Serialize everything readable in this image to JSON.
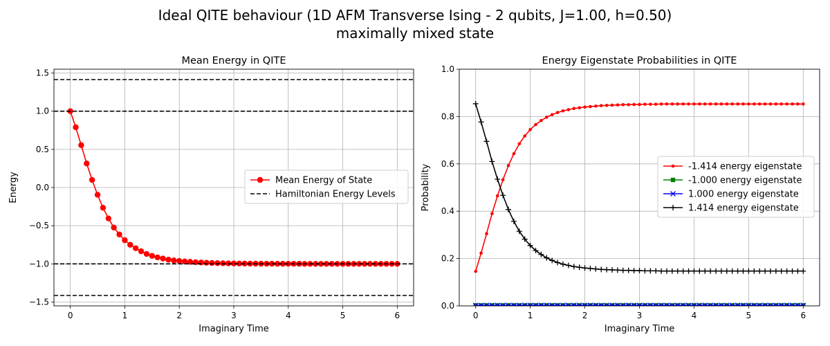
{
  "figure": {
    "title_line1": "Ideal QITE behaviour (1D AFM Transverse Ising - 2 qubits,  J=1.00, h=0.50)",
    "title_line2": "maximally mixed state"
  },
  "chart_data": [
    {
      "type": "line",
      "title": "Mean Energy in QITE",
      "xlabel": "Imaginary Time",
      "ylabel": "Energy",
      "xlim": [
        -0.3,
        6.3
      ],
      "ylim": [
        -1.55,
        1.55
      ],
      "xticks": [
        0,
        1,
        2,
        3,
        4,
        5,
        6
      ],
      "yticks": [
        -1.5,
        -1.0,
        -0.5,
        0.0,
        0.5,
        1.0,
        1.5
      ],
      "grid": true,
      "legend_position": "center-right",
      "series": [
        {
          "name": "Mean Energy of State",
          "color": "#ff0000",
          "marker": "circle",
          "x": [
            0.0,
            0.1,
            0.2,
            0.3,
            0.4,
            0.5,
            0.6,
            0.7,
            0.8,
            0.9,
            1.0,
            1.1,
            1.2,
            1.3,
            1.4,
            1.5,
            1.6,
            1.7,
            1.8,
            1.9,
            2.0,
            2.1,
            2.2,
            2.3,
            2.4,
            2.5,
            2.6,
            2.7,
            2.8,
            2.9,
            3.0,
            3.1,
            3.2,
            3.3,
            3.4,
            3.5,
            3.6,
            3.7,
            3.8,
            3.9,
            4.0,
            4.1,
            4.2,
            4.3,
            4.4,
            4.5,
            4.6,
            4.7,
            4.8,
            4.9,
            5.0,
            5.1,
            5.2,
            5.3,
            5.4,
            5.5,
            5.6,
            5.7,
            5.8,
            5.9,
            6.0
          ],
          "y": [
            1.0,
            0.79,
            0.555,
            0.315,
            0.1,
            -0.095,
            -0.265,
            -0.405,
            -0.525,
            -0.615,
            -0.69,
            -0.75,
            -0.795,
            -0.835,
            -0.87,
            -0.895,
            -0.915,
            -0.93,
            -0.945,
            -0.955,
            -0.962,
            -0.968,
            -0.973,
            -0.978,
            -0.982,
            -0.985,
            -0.988,
            -0.99,
            -0.992,
            -0.993,
            -0.994,
            -0.995,
            -0.996,
            -0.997,
            -0.997,
            -0.998,
            -0.998,
            -0.998,
            -0.999,
            -0.999,
            -0.999,
            -0.999,
            -0.999,
            -1.0,
            -1.0,
            -1.0,
            -1.0,
            -1.0,
            -1.0,
            -1.0,
            -1.0,
            -1.0,
            -1.0,
            -1.0,
            -1.0,
            -1.0,
            -1.0,
            -1.0,
            -1.0,
            -1.0,
            -1.0
          ]
        },
        {
          "name": "Hamiltonian Energy Levels",
          "color": "#000000",
          "style": "dashed-horizontal",
          "levels": [
            -1.414,
            -1.0,
            1.0,
            1.414
          ]
        }
      ]
    },
    {
      "type": "line",
      "title": "Energy Eigenstate Probabilities in QITE",
      "xlabel": "Imaginary Time",
      "ylabel": "Probability",
      "xlim": [
        -0.3,
        6.3
      ],
      "ylim": [
        0.0,
        1.0
      ],
      "xticks": [
        0,
        1,
        2,
        3,
        4,
        5,
        6
      ],
      "yticks": [
        0.0,
        0.2,
        0.4,
        0.6,
        0.8,
        1.0
      ],
      "grid": true,
      "legend_position": "center-right",
      "x": [
        0.0,
        0.1,
        0.2,
        0.3,
        0.4,
        0.5,
        0.6,
        0.7,
        0.8,
        0.9,
        1.0,
        1.1,
        1.2,
        1.3,
        1.4,
        1.5,
        1.6,
        1.7,
        1.8,
        1.9,
        2.0,
        2.1,
        2.2,
        2.3,
        2.4,
        2.5,
        2.6,
        2.7,
        2.8,
        2.9,
        3.0,
        3.1,
        3.2,
        3.3,
        3.4,
        3.5,
        3.6,
        3.7,
        3.8,
        3.9,
        4.0,
        4.1,
        4.2,
        4.3,
        4.4,
        4.5,
        4.6,
        4.7,
        4.8,
        4.9,
        5.0,
        5.1,
        5.2,
        5.3,
        5.4,
        5.5,
        5.6,
        5.7,
        5.8,
        5.9,
        6.0
      ],
      "series": [
        {
          "name": "-1.414 energy eigenstate",
          "color": "#ff0000",
          "marker": "dot",
          "y": [
            0.146,
            0.223,
            0.305,
            0.39,
            0.465,
            0.533,
            0.593,
            0.643,
            0.685,
            0.718,
            0.745,
            0.766,
            0.783,
            0.797,
            0.808,
            0.817,
            0.824,
            0.829,
            0.834,
            0.837,
            0.84,
            0.842,
            0.844,
            0.846,
            0.847,
            0.848,
            0.849,
            0.85,
            0.85,
            0.851,
            0.851,
            0.852,
            0.852,
            0.852,
            0.853,
            0.853,
            0.853,
            0.853,
            0.853,
            0.853,
            0.853,
            0.853,
            0.853,
            0.853,
            0.853,
            0.853,
            0.853,
            0.853,
            0.853,
            0.853,
            0.853,
            0.853,
            0.853,
            0.853,
            0.853,
            0.853,
            0.853,
            0.853,
            0.853,
            0.853,
            0.853
          ]
        },
        {
          "name": "-1.000 energy eigenstate",
          "color": "#008000",
          "marker": "square",
          "y": [
            0.002,
            0.002,
            0.002,
            0.002,
            0.002,
            0.002,
            0.002,
            0.002,
            0.002,
            0.002,
            0.002,
            0.002,
            0.002,
            0.002,
            0.002,
            0.002,
            0.002,
            0.002,
            0.002,
            0.002,
            0.002,
            0.002,
            0.002,
            0.002,
            0.002,
            0.002,
            0.002,
            0.002,
            0.002,
            0.002,
            0.002,
            0.002,
            0.002,
            0.002,
            0.002,
            0.002,
            0.002,
            0.002,
            0.002,
            0.002,
            0.002,
            0.002,
            0.002,
            0.002,
            0.002,
            0.002,
            0.002,
            0.002,
            0.002,
            0.002,
            0.002,
            0.002,
            0.002,
            0.002,
            0.002,
            0.002,
            0.002,
            0.002,
            0.002,
            0.002,
            0.002
          ]
        },
        {
          "name": "1.000 energy eigenstate",
          "color": "#0000ff",
          "marker": "x",
          "y": [
            0.002,
            0.002,
            0.002,
            0.002,
            0.002,
            0.002,
            0.002,
            0.002,
            0.002,
            0.002,
            0.002,
            0.002,
            0.002,
            0.002,
            0.002,
            0.002,
            0.002,
            0.002,
            0.002,
            0.002,
            0.002,
            0.002,
            0.002,
            0.002,
            0.002,
            0.002,
            0.002,
            0.002,
            0.002,
            0.002,
            0.002,
            0.002,
            0.002,
            0.002,
            0.002,
            0.002,
            0.002,
            0.002,
            0.002,
            0.002,
            0.002,
            0.002,
            0.002,
            0.002,
            0.002,
            0.002,
            0.002,
            0.002,
            0.002,
            0.002,
            0.002,
            0.002,
            0.002,
            0.002,
            0.002,
            0.002,
            0.002,
            0.002,
            0.002,
            0.002,
            0.002
          ]
        },
        {
          "name": "1.414 energy eigenstate",
          "color": "#000000",
          "marker": "plus",
          "y": [
            0.854,
            0.777,
            0.695,
            0.61,
            0.535,
            0.467,
            0.407,
            0.357,
            0.315,
            0.282,
            0.255,
            0.234,
            0.217,
            0.203,
            0.192,
            0.183,
            0.176,
            0.171,
            0.166,
            0.163,
            0.16,
            0.158,
            0.156,
            0.154,
            0.153,
            0.152,
            0.151,
            0.15,
            0.15,
            0.149,
            0.149,
            0.148,
            0.148,
            0.148,
            0.147,
            0.147,
            0.147,
            0.147,
            0.147,
            0.147,
            0.147,
            0.147,
            0.147,
            0.147,
            0.147,
            0.147,
            0.147,
            0.147,
            0.147,
            0.147,
            0.147,
            0.147,
            0.147,
            0.147,
            0.147,
            0.147,
            0.147,
            0.147,
            0.147,
            0.147,
            0.147
          ]
        }
      ]
    }
  ]
}
